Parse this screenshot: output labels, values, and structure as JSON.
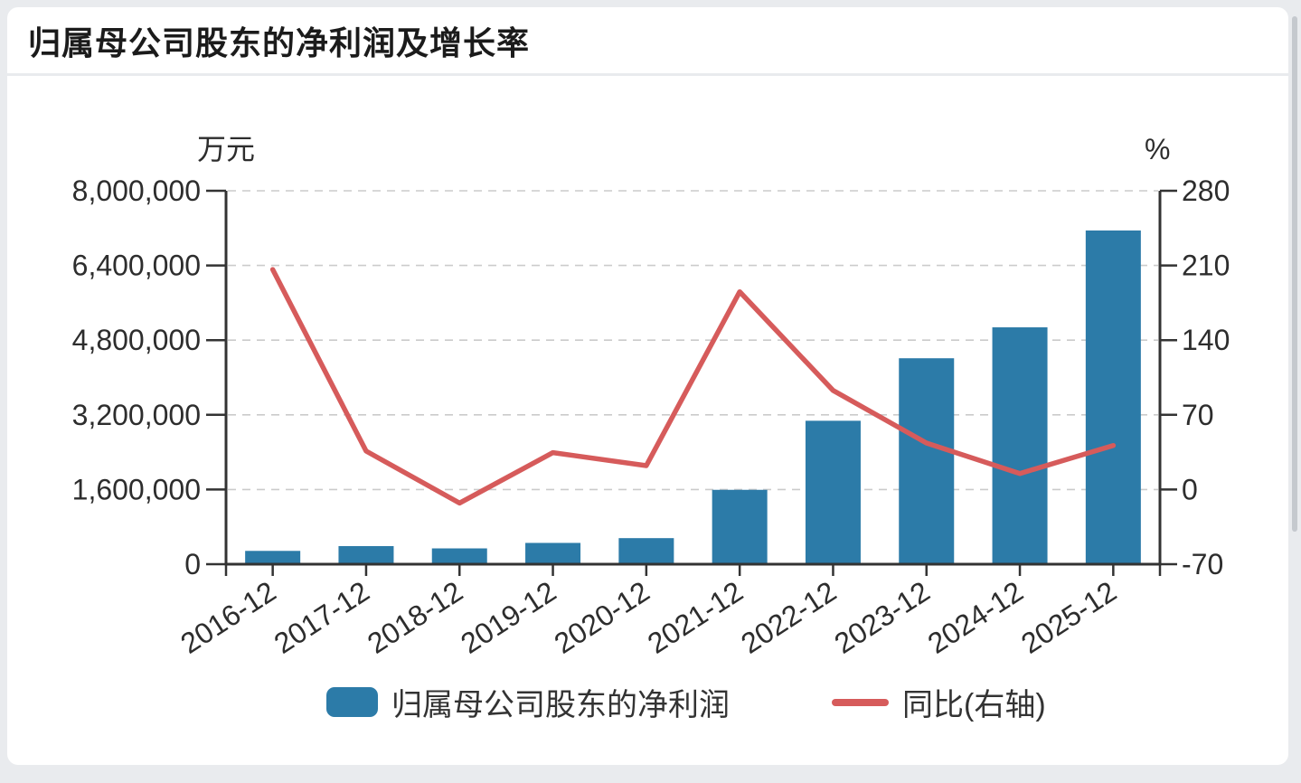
{
  "header": {
    "title": "归属母公司股东的净利润及增长率"
  },
  "chart_data": {
    "type": "bar",
    "subtype": "combo-bar-line-dual-axis",
    "categories": [
      "2016-12",
      "2017-12",
      "2018-12",
      "2019-12",
      "2020-12",
      "2021-12",
      "2022-12",
      "2023-12",
      "2024-12",
      "2025-12"
    ],
    "series": [
      {
        "name": "归属母公司股东的净利润",
        "type": "bar",
        "y_axis": "left",
        "color": "#2c7ba8",
        "values": [
          285200,
          387800,
          338700,
          456000,
          558300,
          1593100,
          3072900,
          4412100,
          5074500,
          7150000
        ]
      },
      {
        "name": "同比(右轴)",
        "type": "line",
        "y_axis": "right",
        "color": "#d65b5b",
        "values": [
          206.2,
          36.0,
          -12.7,
          34.6,
          22.4,
          185.3,
          92.9,
          43.6,
          15.0,
          41.3
        ]
      }
    ],
    "left_axis": {
      "unit": "万元",
      "min": 0,
      "max": 8000000,
      "tick_values": [
        8000000,
        6400000,
        4800000,
        3200000,
        1600000,
        0
      ],
      "tick_labels": [
        "8,000,000",
        "6,400,000",
        "4,800,000",
        "3,200,000",
        "1,600,000",
        "0"
      ]
    },
    "right_axis": {
      "unit": "%",
      "min": -70,
      "max": 280,
      "tick_values": [
        280,
        210,
        140,
        70,
        0,
        -70
      ],
      "tick_labels": [
        "280",
        "210",
        "140",
        "70",
        "0",
        "-70"
      ]
    },
    "grid": "horizontal-dashed",
    "legend_position": "bottom"
  },
  "style": {
    "bar_color": "#2c7ba8",
    "line_color": "#d65b5b",
    "axis_color": "#333333",
    "grid_color": "#cbcbcb",
    "text_color": "#2d2d2d",
    "page_bg": "#e9ebee",
    "card_bg": "#ffffff"
  }
}
